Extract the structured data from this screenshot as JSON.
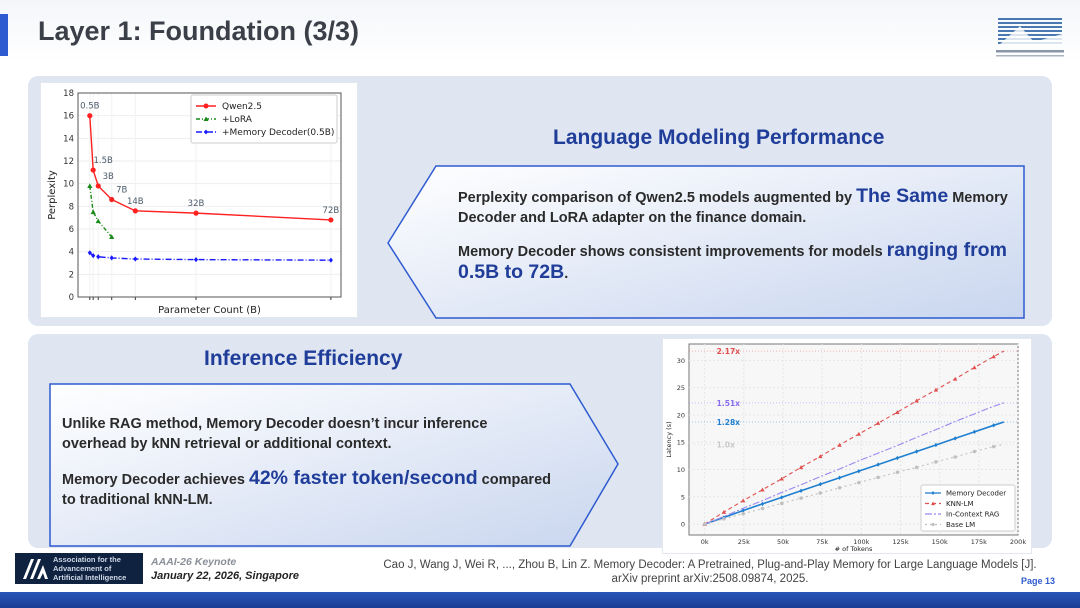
{
  "title": "Layer 1: Foundation (3/3)",
  "section1": {
    "heading": "Language Modeling Performance",
    "p1_a": "Perplexity comparison of Qwen2.5 models augmented by ",
    "p1_big": "The Same",
    "p1_b": " Memory Decoder and LoRA adapter on the finance domain.",
    "p2_a": "Memory Decoder shows consistent improvements for models ",
    "p2_big": "ranging from 0.5B to 72B",
    "p2_b": "."
  },
  "section2": {
    "heading": "Inference Efficiency",
    "p1": "Unlike RAG method, Memory Decoder doesn’t incur inference overhead by kNN retrieval or additional context.",
    "p2_a": "Memory Decoder achieves ",
    "p2_big": "42% faster token/second",
    "p2_b": " compared to traditional kNN-LM."
  },
  "footer": {
    "org_lines": [
      "Association for the",
      "Advancement of",
      "Artificial Intelligence"
    ],
    "keynote": "AAAI-26 Keynote",
    "date": "January 22, 2026, Singapore",
    "citation": "Cao J, Wang J, Wei R, ..., Zhou B, Lin Z. Memory Decoder: A Pretrained, Plug-and-Play Memory for Large Language Models [J]. arXiv preprint arXiv:2508.09874, 2025.",
    "page": "Page 13"
  },
  "logo_text": "上海人工智能实验室 Shanghai Artificial Intelligence Laboratory",
  "chart_data": [
    {
      "type": "line",
      "xlabel": "Parameter Count (B)",
      "ylabel": "Perplexity",
      "ylim": [
        0,
        18
      ],
      "yticks": [
        0,
        2,
        4,
        6,
        8,
        10,
        12,
        14,
        16,
        18
      ],
      "xlim": [
        -3,
        75
      ],
      "point_labels": [
        "0.5B",
        "1.5B",
        "3B",
        "7B",
        "14B",
        "32B",
        "72B"
      ],
      "legend": "top-right",
      "series": [
        {
          "name": "Qwen2.5",
          "color": "#ff2020",
          "dash": "",
          "marker": "circle",
          "x": [
            0.5,
            1.5,
            3,
            7,
            14,
            32,
            72
          ],
          "values": [
            16,
            11.2,
            9.8,
            8.6,
            7.6,
            7.4,
            6.8
          ]
        },
        {
          "name": "+LoRA",
          "color": "#1a8a1a",
          "dash": "4 2 1 2",
          "marker": "triangle",
          "x": [
            0.5,
            1.5,
            3,
            7
          ],
          "values": [
            9.8,
            7.5,
            6.7,
            5.3
          ]
        },
        {
          "name": "+Memory Decoder(0.5B)",
          "color": "#1a1aff",
          "dash": "6 2 1 2",
          "marker": "diamond",
          "x": [
            0.5,
            1.5,
            3,
            7,
            14,
            32,
            72
          ],
          "values": [
            3.9,
            3.65,
            3.55,
            3.45,
            3.35,
            3.3,
            3.25
          ]
        }
      ]
    },
    {
      "type": "line",
      "xlabel": "# of Tokens",
      "ylabel": "Latency (s)",
      "xlim": [
        -10,
        200
      ],
      "ylim": [
        -2,
        33
      ],
      "xticks": [
        0,
        25,
        50,
        75,
        100,
        125,
        150,
        175,
        200
      ],
      "xticklabels": [
        "0k",
        "25k",
        "50k",
        "75k",
        "100k",
        "125k",
        "150k",
        "175k",
        "200k"
      ],
      "yticks": [
        0,
        5,
        10,
        15,
        20,
        25,
        30
      ],
      "legend": "bottom-right",
      "x": [
        0,
        12.3,
        24.6,
        36.9,
        49.2,
        61.5,
        73.8,
        86.1,
        98.4,
        110.7,
        123,
        135.3,
        147.6,
        159.9,
        172.2,
        184.5
      ],
      "series": [
        {
          "name": "Memory Decoder",
          "color": "#1f7fd0",
          "dash": "",
          "end": 18.7,
          "values": [
            0,
            1.2,
            2.5,
            3.7,
            4.9,
            6.1,
            7.3,
            8.5,
            9.7,
            10.9,
            12.1,
            13.3,
            14.5,
            15.7,
            16.9,
            18.1
          ]
        },
        {
          "name": "KNN-LM",
          "color": "#e05050",
          "dash": "4 3",
          "end": 31.7,
          "values": [
            0,
            2.2,
            4.3,
            6.3,
            8.3,
            10.4,
            12.4,
            14.5,
            16.5,
            18.5,
            20.5,
            22.6,
            24.6,
            26.6,
            28.7,
            30.7
          ]
        },
        {
          "name": "In-Context RAG",
          "color": "#9a88f0",
          "dash": "7 2 2 2",
          "end": 22.2,
          "values": [
            0,
            1.4,
            2.9,
            4.3,
            5.8,
            7.2,
            8.7,
            10.1,
            11.6,
            13.0,
            14.4,
            15.9,
            17.3,
            18.8,
            20.2,
            21.6
          ]
        },
        {
          "name": "Base LM",
          "color": "#c0c0c0",
          "dash": "2 3",
          "end": 14.6,
          "values": [
            0,
            0.95,
            1.9,
            2.85,
            3.8,
            4.75,
            5.7,
            6.65,
            7.6,
            8.55,
            9.5,
            10.4,
            11.4,
            12.3,
            13.3,
            14.2
          ]
        }
      ],
      "annotations": [
        {
          "text": "2.17x",
          "y": 31.7,
          "color": "#e05050"
        },
        {
          "text": "1.51x",
          "y": 22.2,
          "color": "#8a6cf0"
        },
        {
          "text": "1.28x",
          "y": 18.7,
          "color": "#1f7fd0"
        },
        {
          "text": "1.0x",
          "y": 14.6,
          "color": "#c8c8c8"
        }
      ]
    }
  ]
}
